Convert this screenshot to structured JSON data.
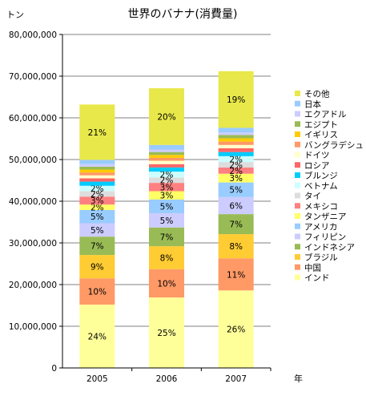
{
  "chart_data": {
    "type": "bar",
    "stacked": true,
    "title": "世界のバナナ(消費量)",
    "ylabel": "トン",
    "xlabel": "年",
    "categories": [
      "2005",
      "2006",
      "2007"
    ],
    "ylim": [
      0,
      80000000
    ],
    "yticks": [
      0,
      10000000,
      20000000,
      30000000,
      40000000,
      50000000,
      60000000,
      70000000,
      80000000
    ],
    "ytick_labels": [
      "0",
      "10,000,000",
      "20,000,000",
      "30,000,000",
      "40,000,000",
      "50,000,000",
      "60,000,000",
      "70,000,000",
      "80,000,000"
    ],
    "grid": true,
    "legend_position": "right",
    "series": [
      {
        "name": "インド",
        "color": "#FFFF99",
        "values": [
          15200000,
          16900000,
          18600000
        ],
        "labels": [
          "24%",
          "25%",
          "26%"
        ]
      },
      {
        "name": "中国",
        "color": "#FF9966",
        "values": [
          6300000,
          6800000,
          7700000
        ],
        "labels": [
          "10%",
          "10%",
          "11%"
        ]
      },
      {
        "name": "ブラジル",
        "color": "#FFCC33",
        "values": [
          5600000,
          5500000,
          5800000
        ],
        "labels": [
          "9%",
          "8%",
          "8%"
        ]
      },
      {
        "name": "インドネシア",
        "color": "#99BB55",
        "values": [
          4400000,
          4500000,
          4800000
        ],
        "labels": [
          "7%",
          "7%",
          "7%"
        ]
      },
      {
        "name": "フィリピン",
        "color": "#CCCCFF",
        "values": [
          3200000,
          3400000,
          4100000
        ],
        "labels": [
          "5%",
          "5%",
          "6%"
        ]
      },
      {
        "name": "アメリカ",
        "color": "#99CCFF",
        "values": [
          3200000,
          3300000,
          3500000
        ],
        "labels": [
          "5%",
          "5%",
          "5%"
        ]
      },
      {
        "name": "タンザニア",
        "color": "#FFFF66",
        "values": [
          1300000,
          2000000,
          2100000
        ],
        "labels": [
          "2%",
          "3%",
          "3%"
        ]
      },
      {
        "name": "メキシコ",
        "color": "#FF8080",
        "values": [
          1900000,
          2000000,
          1500000
        ],
        "labels": [
          "3%",
          "3%",
          "2%"
        ]
      },
      {
        "name": "タイ",
        "color": "#DDDDDD",
        "values": [
          1300000,
          1300000,
          1300000
        ],
        "labels": [
          "2%",
          "2%",
          "2%"
        ]
      },
      {
        "name": "ベトナム",
        "color": "#CCFFFF",
        "values": [
          1300000,
          1400000,
          1400000
        ],
        "labels": [
          "2%",
          "2%",
          "2%"
        ]
      },
      {
        "name": "ブルンジ",
        "color": "#00CCFF",
        "values": [
          1000000,
          1000000,
          1000000
        ],
        "labels": [
          "",
          "",
          ""
        ]
      },
      {
        "name": "ロシア",
        "color": "#FF6666",
        "values": [
          800000,
          800000,
          900000
        ],
        "labels": [
          "",
          "",
          ""
        ]
      },
      {
        "name": "ドイツ",
        "color": "#FFFFCC",
        "values": [
          700000,
          800000,
          800000
        ],
        "labels": [
          "",
          "",
          ""
        ]
      },
      {
        "name": "バングラデシュ",
        "color": "#FF9966",
        "values": [
          700000,
          700000,
          800000
        ],
        "labels": [
          "",
          "",
          ""
        ]
      },
      {
        "name": "イギリス",
        "color": "#FFCC00",
        "values": [
          700000,
          700000,
          800000
        ],
        "labels": [
          "",
          "",
          ""
        ]
      },
      {
        "name": "エジプト",
        "color": "#99BB55",
        "values": [
          700000,
          700000,
          800000
        ],
        "labels": [
          "",
          "",
          ""
        ]
      },
      {
        "name": "エクアドル",
        "color": "#CCCCFF",
        "values": [
          600000,
          600000,
          600000
        ],
        "labels": [
          "",
          "",
          ""
        ]
      },
      {
        "name": "日本",
        "color": "#99CCFF",
        "values": [
          1000000,
          1100000,
          1100000
        ],
        "labels": [
          "",
          "",
          ""
        ]
      },
      {
        "name": "その他",
        "color": "#E8E84A",
        "values": [
          13300000,
          13600000,
          13600000
        ],
        "labels": [
          "21%",
          "20%",
          "19%"
        ]
      }
    ]
  }
}
